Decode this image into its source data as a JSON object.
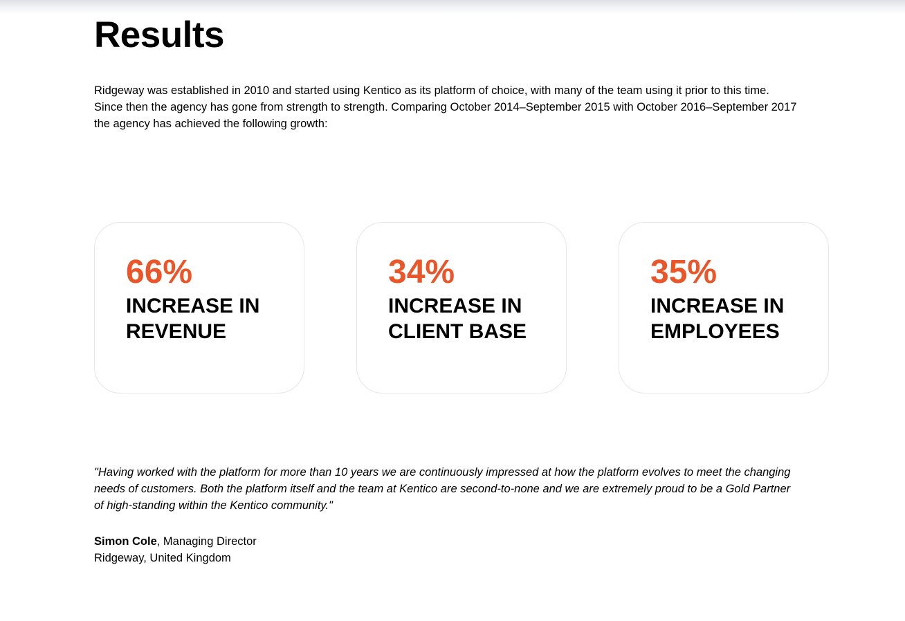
{
  "section": {
    "title": "Results"
  },
  "intro": {
    "lines": [
      "Ridgeway was established in 2010 and started using Kentico as its platform of choice, with many of the team using it prior to this time.",
      "Since then the agency has gone from strength to strength. Comparing October 2014–September 2015 with October 2016–September 2017",
      "the agency has achieved the following growth:"
    ]
  },
  "colors": {
    "accent": "#e8562a",
    "text": "#000000",
    "card_border": "#e6e6e6"
  },
  "stats": [
    {
      "value": "66%",
      "label_lines": [
        "INCREASE IN",
        "REVENUE"
      ]
    },
    {
      "value": "34%",
      "label_lines": [
        "INCREASE IN",
        "CLIENT BASE"
      ]
    },
    {
      "value": "35%",
      "label_lines": [
        "INCREASE IN",
        "EMPLOYEES"
      ]
    }
  ],
  "testimonial": {
    "quote_lines": [
      "\"Having worked with the platform for more than 10 years we are continuously impressed at how the platform evolves to meet the changing",
      "needs of customers. Both the platform itself and the team at Kentico are second-to-none and we are extremely proud to be a Gold Partner",
      "of high-standing within the Kentico community.\""
    ],
    "author_name": "Simon Cole",
    "author_role": ", Managing Director",
    "author_company": "Ridgeway, United Kingdom"
  }
}
